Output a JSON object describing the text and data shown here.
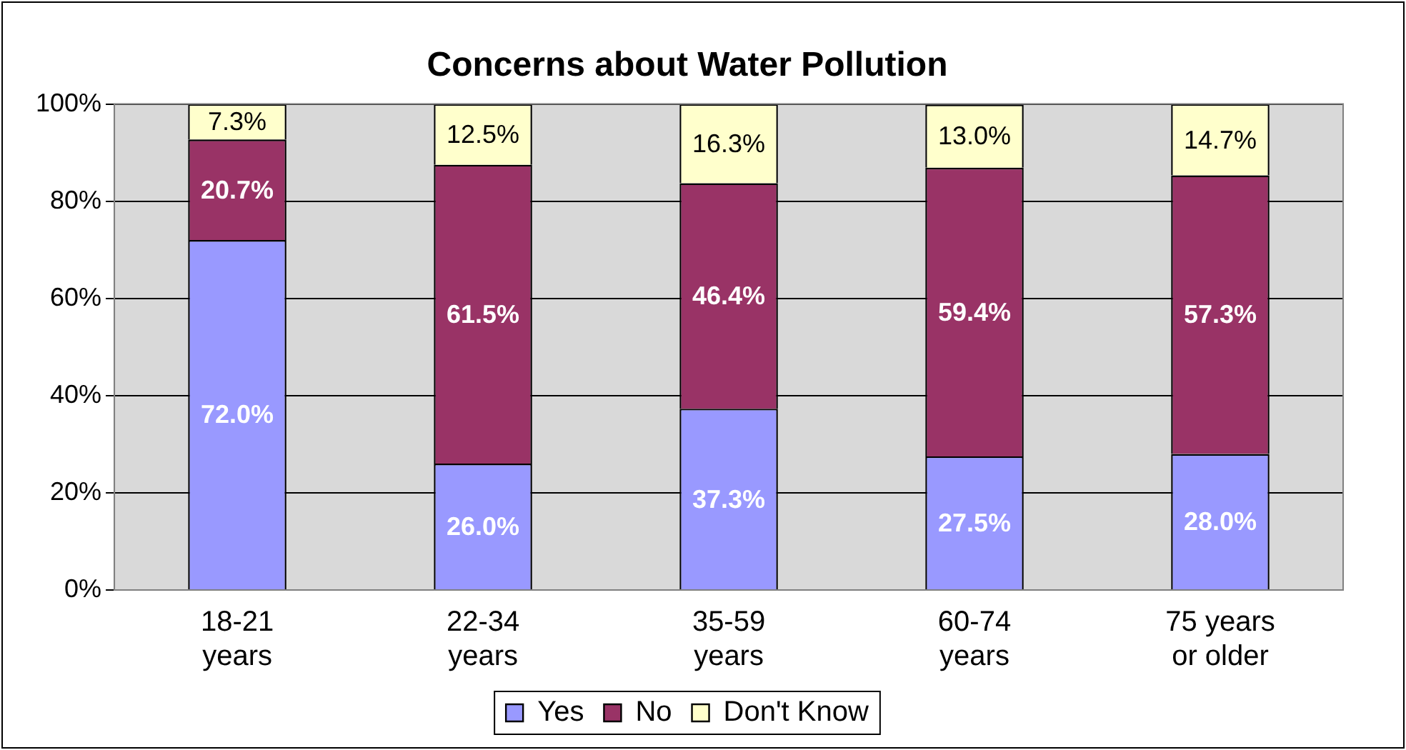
{
  "chart_data": {
    "type": "bar",
    "title": "Concerns about Water Pollution",
    "stacked": true,
    "categories": [
      "18-21 years",
      "22-34 years",
      "35-59 years",
      "60-74 years",
      "75 years or older"
    ],
    "series": [
      {
        "name": "Yes",
        "color": "#9999ff",
        "values": [
          72.0,
          26.0,
          37.3,
          27.5,
          28.0
        ],
        "value_labels": [
          "72.0%",
          "26.0%",
          "37.3%",
          "27.5%",
          "28.0%"
        ]
      },
      {
        "name": "No",
        "color": "#993366",
        "values": [
          20.7,
          61.5,
          46.4,
          59.4,
          57.3
        ],
        "value_labels": [
          "20.7%",
          "61.5%",
          "46.4%",
          "59.4%",
          "57.3%"
        ]
      },
      {
        "name": "Don't Know",
        "color": "#ffffcc",
        "values": [
          7.3,
          12.5,
          16.3,
          13.0,
          14.7
        ],
        "value_labels": [
          "7.3%",
          "12.5%",
          "16.3%",
          "13.0%",
          "14.7%"
        ]
      }
    ],
    "ylim": [
      0,
      100
    ],
    "yticks": [
      {
        "value": 0,
        "label": "0%"
      },
      {
        "value": 20,
        "label": "20%"
      },
      {
        "value": 40,
        "label": "40%"
      },
      {
        "value": 60,
        "label": "60%"
      },
      {
        "value": 80,
        "label": "80%"
      },
      {
        "value": 100,
        "label": "100%"
      }
    ],
    "grid": "y",
    "legend": "bottom"
  }
}
